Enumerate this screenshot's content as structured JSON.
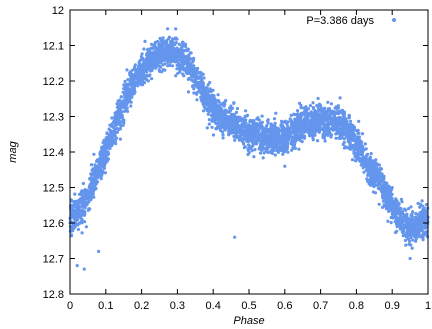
{
  "chart_data": {
    "type": "scatter",
    "title": "",
    "xlabel": "Phase",
    "ylabel": "mag",
    "xlim": [
      0,
      1
    ],
    "ylim": [
      12.8,
      12.0
    ],
    "y_inverted": true,
    "grid": false,
    "legend_position": "top-right",
    "xticks": [
      "0",
      "0.1",
      "0.2",
      "0.3",
      "0.4",
      "0.5",
      "0.6",
      "0.7",
      "0.8",
      "0.9",
      "1"
    ],
    "yticks": [
      "12",
      "12.1",
      "12.2",
      "12.3",
      "12.4",
      "12.5",
      "12.6",
      "12.7",
      "12.8"
    ],
    "marker_color": "#6495ED",
    "series": [
      {
        "name": "P=3.386 days",
        "curve": [
          [
            0.0,
            12.59
          ],
          [
            0.02,
            12.57
          ],
          [
            0.04,
            12.54
          ],
          [
            0.06,
            12.5
          ],
          [
            0.08,
            12.45
          ],
          [
            0.1,
            12.4
          ],
          [
            0.12,
            12.34
          ],
          [
            0.14,
            12.29
          ],
          [
            0.16,
            12.24
          ],
          [
            0.18,
            12.2
          ],
          [
            0.2,
            12.17
          ],
          [
            0.22,
            12.15
          ],
          [
            0.24,
            12.13
          ],
          [
            0.26,
            12.12
          ],
          [
            0.28,
            12.12
          ],
          [
            0.3,
            12.12
          ],
          [
            0.32,
            12.14
          ],
          [
            0.34,
            12.17
          ],
          [
            0.36,
            12.21
          ],
          [
            0.38,
            12.25
          ],
          [
            0.4,
            12.28
          ],
          [
            0.42,
            12.3
          ],
          [
            0.44,
            12.31
          ],
          [
            0.46,
            12.32
          ],
          [
            0.48,
            12.34
          ],
          [
            0.5,
            12.35
          ],
          [
            0.52,
            12.35
          ],
          [
            0.54,
            12.36
          ],
          [
            0.56,
            12.36
          ],
          [
            0.58,
            12.36
          ],
          [
            0.6,
            12.36
          ],
          [
            0.62,
            12.35
          ],
          [
            0.64,
            12.33
          ],
          [
            0.66,
            12.32
          ],
          [
            0.68,
            12.32
          ],
          [
            0.7,
            12.31
          ],
          [
            0.72,
            12.32
          ],
          [
            0.74,
            12.31
          ],
          [
            0.76,
            12.32
          ],
          [
            0.78,
            12.34
          ],
          [
            0.8,
            12.38
          ],
          [
            0.82,
            12.41
          ],
          [
            0.84,
            12.45
          ],
          [
            0.86,
            12.48
          ],
          [
            0.88,
            12.51
          ],
          [
            0.9,
            12.55
          ],
          [
            0.92,
            12.58
          ],
          [
            0.94,
            12.61
          ],
          [
            0.96,
            12.62
          ],
          [
            0.98,
            12.6
          ],
          [
            1.0,
            12.59
          ]
        ],
        "scatter_mag": 0.022,
        "n_points": 4200,
        "outliers": [
          [
            0.04,
            12.73
          ],
          [
            0.46,
            12.64
          ],
          [
            0.02,
            12.72
          ],
          [
            0.08,
            12.68
          ],
          [
            0.95,
            12.7
          ],
          [
            0.72,
            12.26
          ],
          [
            0.6,
            12.44
          ]
        ]
      }
    ]
  }
}
